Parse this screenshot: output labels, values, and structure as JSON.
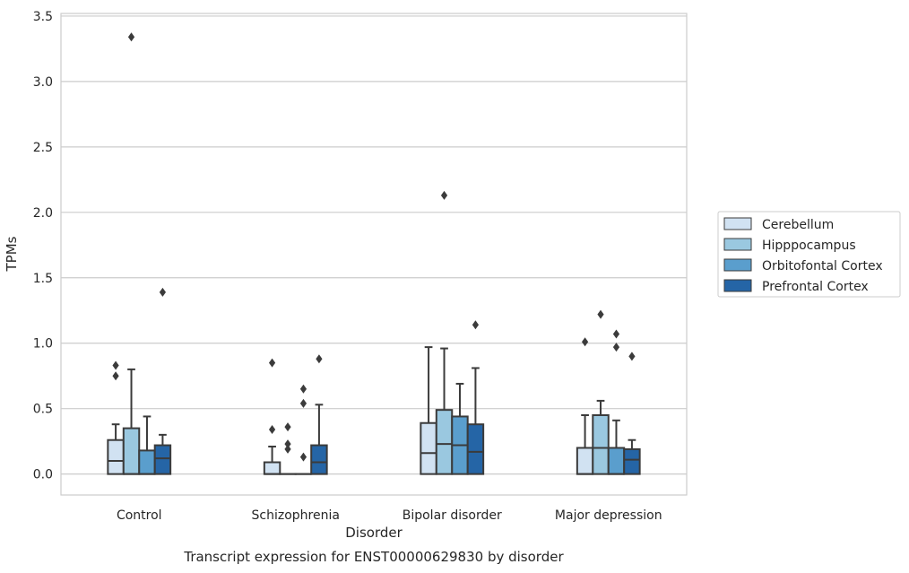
{
  "chart_data": {
    "type": "box",
    "xlabel": "Disorder",
    "ylabel": "TPMs",
    "caption": "Transcript expression for ENST00000629830 by disorder",
    "ylim": [
      -0.16,
      3.52
    ],
    "yticks": [
      0.0,
      0.5,
      1.0,
      1.5,
      2.0,
      2.5,
      3.0,
      3.5
    ],
    "ytick_labels": [
      "0.0",
      "0.5",
      "1.0",
      "1.5",
      "2.0",
      "2.5",
      "3.0",
      "3.5"
    ],
    "grid": "horizontal",
    "legend_position": "right",
    "categories": [
      "Control",
      "Schizophrenia",
      "Bipolar disorder",
      "Major depression"
    ],
    "series": [
      {
        "name": "Cerebellum",
        "color": "#d1e2f2",
        "boxes": [
          {
            "whislo": 0.0,
            "q1": 0.0,
            "med": 0.1,
            "q3": 0.26,
            "whishi": 0.38,
            "fliers": [
              0.75,
              0.83
            ]
          },
          {
            "whislo": 0.0,
            "q1": 0.0,
            "med": 0.0,
            "q3": 0.09,
            "whishi": 0.21,
            "fliers": [
              0.34,
              0.85
            ]
          },
          {
            "whislo": 0.0,
            "q1": 0.0,
            "med": 0.16,
            "q3": 0.39,
            "whishi": 0.97,
            "fliers": []
          },
          {
            "whislo": 0.0,
            "q1": 0.0,
            "med": 0.0,
            "q3": 0.2,
            "whishi": 0.45,
            "fliers": [
              1.01
            ]
          }
        ]
      },
      {
        "name": "Hipppocampus",
        "color": "#9ac8e0",
        "boxes": [
          {
            "whislo": 0.0,
            "q1": 0.0,
            "med": 0.0,
            "q3": 0.35,
            "whishi": 0.8,
            "fliers": [
              3.34
            ]
          },
          {
            "whislo": 0.0,
            "q1": 0.0,
            "med": 0.0,
            "q3": 0.0,
            "whishi": 0.0,
            "fliers": [
              0.19,
              0.23,
              0.36
            ]
          },
          {
            "whislo": 0.0,
            "q1": 0.0,
            "med": 0.23,
            "q3": 0.49,
            "whishi": 0.96,
            "fliers": [
              2.13
            ]
          },
          {
            "whislo": 0.0,
            "q1": 0.0,
            "med": 0.2,
            "q3": 0.45,
            "whishi": 0.56,
            "fliers": [
              1.22
            ]
          }
        ]
      },
      {
        "name": "Orbitofontal Cortex",
        "color": "#5a9ecd",
        "boxes": [
          {
            "whislo": 0.0,
            "q1": 0.0,
            "med": 0.0,
            "q3": 0.18,
            "whishi": 0.44,
            "fliers": []
          },
          {
            "whislo": 0.0,
            "q1": 0.0,
            "med": 0.0,
            "q3": 0.0,
            "whishi": 0.0,
            "fliers": [
              0.13,
              0.54,
              0.65
            ]
          },
          {
            "whislo": 0.0,
            "q1": 0.0,
            "med": 0.22,
            "q3": 0.44,
            "whishi": 0.69,
            "fliers": []
          },
          {
            "whislo": 0.0,
            "q1": 0.0,
            "med": 0.0,
            "q3": 0.2,
            "whishi": 0.41,
            "fliers": [
              0.97,
              1.07
            ]
          }
        ]
      },
      {
        "name": "Prefrontal Cortex",
        "color": "#2565a6",
        "boxes": [
          {
            "whislo": 0.0,
            "q1": 0.0,
            "med": 0.12,
            "q3": 0.22,
            "whishi": 0.3,
            "fliers": [
              1.39
            ]
          },
          {
            "whislo": 0.0,
            "q1": 0.0,
            "med": 0.09,
            "q3": 0.22,
            "whishi": 0.53,
            "fliers": [
              0.88
            ]
          },
          {
            "whislo": 0.0,
            "q1": 0.0,
            "med": 0.17,
            "q3": 0.38,
            "whishi": 0.81,
            "fliers": [
              1.14
            ]
          },
          {
            "whislo": 0.0,
            "q1": 0.0,
            "med": 0.11,
            "q3": 0.19,
            "whishi": 0.26,
            "fliers": [
              0.9
            ]
          }
        ]
      }
    ]
  }
}
